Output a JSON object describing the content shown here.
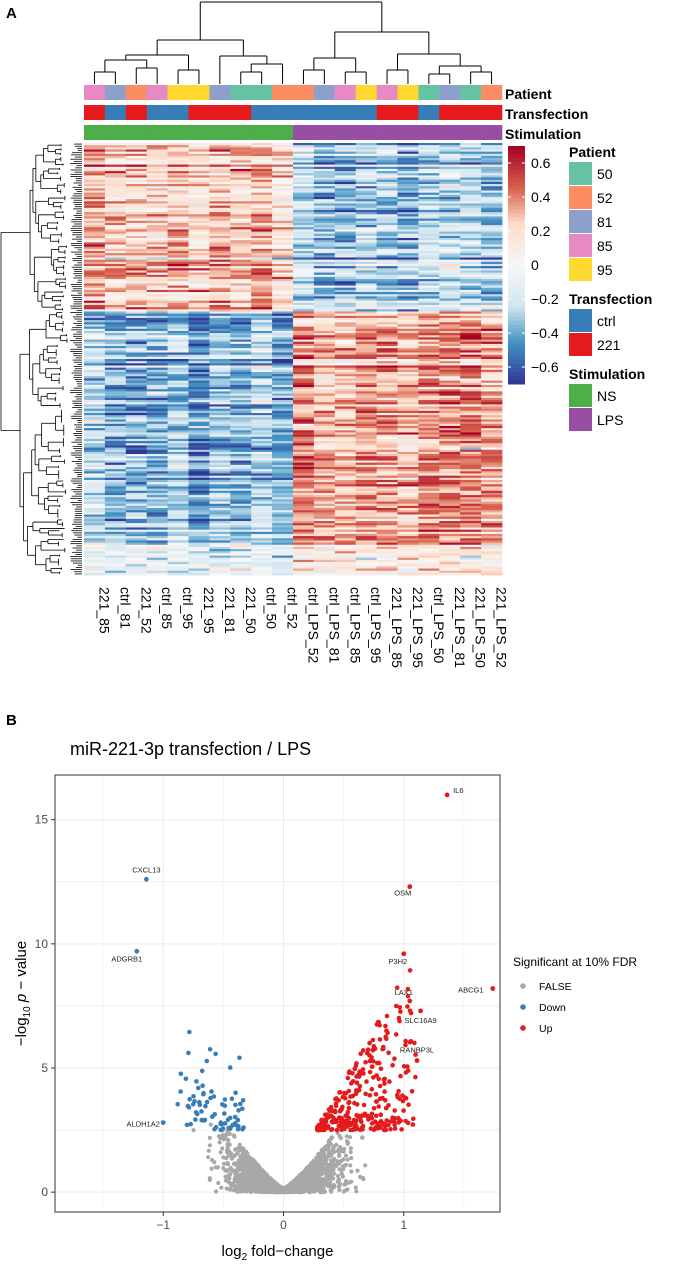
{
  "panel_a": {
    "letter": "A",
    "annotation_rows": [
      {
        "name": "Patient",
        "label": "Patient"
      },
      {
        "name": "Transfection",
        "label": "Transfection"
      },
      {
        "name": "Stimulation",
        "label": "Stimulation"
      }
    ],
    "legends": [
      {
        "title": "Patient",
        "items": [
          {
            "label": "50",
            "color": "#66c2a5"
          },
          {
            "label": "52",
            "color": "#fc8d62"
          },
          {
            "label": "81",
            "color": "#8da0cb"
          },
          {
            "label": "85",
            "color": "#e78ac3"
          },
          {
            "label": "95",
            "color": "#ffd92f"
          }
        ]
      },
      {
        "title": "Transfection",
        "items": [
          {
            "label": "ctrl",
            "color": "#377eb8"
          },
          {
            "label": "221",
            "color": "#e41a1c"
          }
        ]
      },
      {
        "title": "Stimulation",
        "items": [
          {
            "label": "NS",
            "color": "#4daf4a"
          },
          {
            "label": "LPS",
            "color": "#984ea3"
          }
        ]
      }
    ],
    "color_scale": {
      "ticks": [
        {
          "value": 0.6,
          "label": "0.6"
        },
        {
          "value": 0.4,
          "label": "0.4"
        },
        {
          "value": 0.2,
          "label": "0.2"
        },
        {
          "value": 0,
          "label": "0"
        },
        {
          "value": -0.2,
          "label": "−0.2"
        },
        {
          "value": -0.4,
          "label": "−0.4"
        },
        {
          "value": -0.6,
          "label": "−0.6"
        }
      ],
      "min": -0.7,
      "max": 0.7,
      "colors": {
        "low": "#313695",
        "mid": "#f7f7f7",
        "high": "#a50026"
      }
    },
    "columns": [
      "221_85",
      "ctrl_81",
      "221_52",
      "ctrl_85",
      "ctrl_95",
      "221_95",
      "221_81",
      "221_50",
      "ctrl_50",
      "ctrl_52",
      "ctrl_LPS_52",
      "ctrl_LPS_81",
      "ctrl_LPS_85",
      "ctrl_LPS_95",
      "221_LPS_85",
      "221_LPS_95",
      "ctrl_LPS_50",
      "221_LPS_81",
      "221_LPS_50",
      "221_LPS_52"
    ],
    "column_patient": [
      "85",
      "81",
      "52",
      "85",
      "95",
      "95",
      "81",
      "50",
      "50",
      "52",
      "52",
      "81",
      "85",
      "95",
      "85",
      "95",
      "50",
      "81",
      "50",
      "52"
    ],
    "column_transfection": [
      "221",
      "ctrl",
      "221",
      "ctrl",
      "ctrl",
      "221",
      "221",
      "221",
      "ctrl",
      "ctrl",
      "ctrl",
      "ctrl",
      "ctrl",
      "ctrl",
      "221",
      "221",
      "ctrl",
      "221",
      "221",
      "221"
    ],
    "column_stimulation": [
      "NS",
      "NS",
      "NS",
      "NS",
      "NS",
      "NS",
      "NS",
      "NS",
      "NS",
      "NS",
      "LPS",
      "LPS",
      "LPS",
      "LPS",
      "LPS",
      "LPS",
      "LPS",
      "LPS",
      "LPS",
      "LPS"
    ]
  },
  "panel_b": {
    "letter": "B"
  },
  "chart_data": [
    {
      "type": "heatmap",
      "title": "",
      "description": "Hierarchically clustered heatmap of relative expression (approx. -0.7 to 0.7); upper gene cluster high in NS samples, lower gene cluster high in LPS samples",
      "x_categories": [
        "221_85",
        "ctrl_81",
        "221_52",
        "ctrl_85",
        "ctrl_95",
        "221_95",
        "221_81",
        "221_50",
        "ctrl_50",
        "ctrl_52",
        "ctrl_LPS_52",
        "ctrl_LPS_81",
        "ctrl_LPS_85",
        "ctrl_LPS_95",
        "221_LPS_85",
        "221_LPS_95",
        "ctrl_LPS_50",
        "221_LPS_81",
        "221_LPS_50",
        "221_LPS_52"
      ],
      "value_range": [
        -0.7,
        0.7
      ]
    },
    {
      "type": "scatter",
      "title": "miR-221-3p transfection / LPS",
      "xlabel_main": "log",
      "xlabel_sub": "2",
      "xlabel_rest": " fold−change",
      "ylabel_pre": "−log",
      "ylabel_sub": "10",
      "ylabel_p": "p",
      "ylabel_rest": " − value",
      "xlim": [
        -1.9,
        1.8
      ],
      "ylim": [
        -0.8,
        16.8
      ],
      "x_ticks": [
        {
          "value": -1,
          "label": "−1"
        },
        {
          "value": 0,
          "label": "0"
        },
        {
          "value": 1,
          "label": "1"
        }
      ],
      "y_ticks": [
        {
          "value": 0,
          "label": "0"
        },
        {
          "value": 5,
          "label": "5"
        },
        {
          "value": 10,
          "label": "10"
        },
        {
          "value": 15,
          "label": "15"
        }
      ],
      "legend": {
        "title": "Significant at 10% FDR",
        "items": [
          {
            "label": "FALSE",
            "color": "#a8a8a8"
          },
          {
            "label": "Down",
            "color": "#377eb8"
          },
          {
            "label": "Up",
            "color": "#e41a1c"
          }
        ]
      },
      "labeled_points": [
        {
          "gene": "IL6",
          "x": 1.36,
          "y": 16.0,
          "group": "Up"
        },
        {
          "gene": "CXCL13",
          "x": -1.14,
          "y": 12.6,
          "group": "Down"
        },
        {
          "gene": "OSM",
          "x": 1.05,
          "y": 12.3,
          "group": "Up"
        },
        {
          "gene": "ADGRB1",
          "x": -1.22,
          "y": 9.7,
          "group": "Down"
        },
        {
          "gene": "P3H2",
          "x": 1.0,
          "y": 9.6,
          "group": "Up"
        },
        {
          "gene": "ABCG1",
          "x": 1.74,
          "y": 8.2,
          "group": "Up"
        },
        {
          "gene": "LAX1",
          "x": 1.05,
          "y": 7.7,
          "group": "Up"
        },
        {
          "gene": "SLC16A9",
          "x": 1.14,
          "y": 7.3,
          "group": "Up"
        },
        {
          "gene": "RANBP3L",
          "x": 1.11,
          "y": 5.3,
          "group": "Up"
        },
        {
          "gene": "ALDH1A2",
          "x": -1.0,
          "y": 2.8,
          "group": "Down"
        }
      ],
      "significance_threshold_y": 2.5,
      "down_region_x": [
        -1.0,
        -0.32
      ],
      "up_region_x": [
        0.28,
        1.1
      ]
    }
  ]
}
